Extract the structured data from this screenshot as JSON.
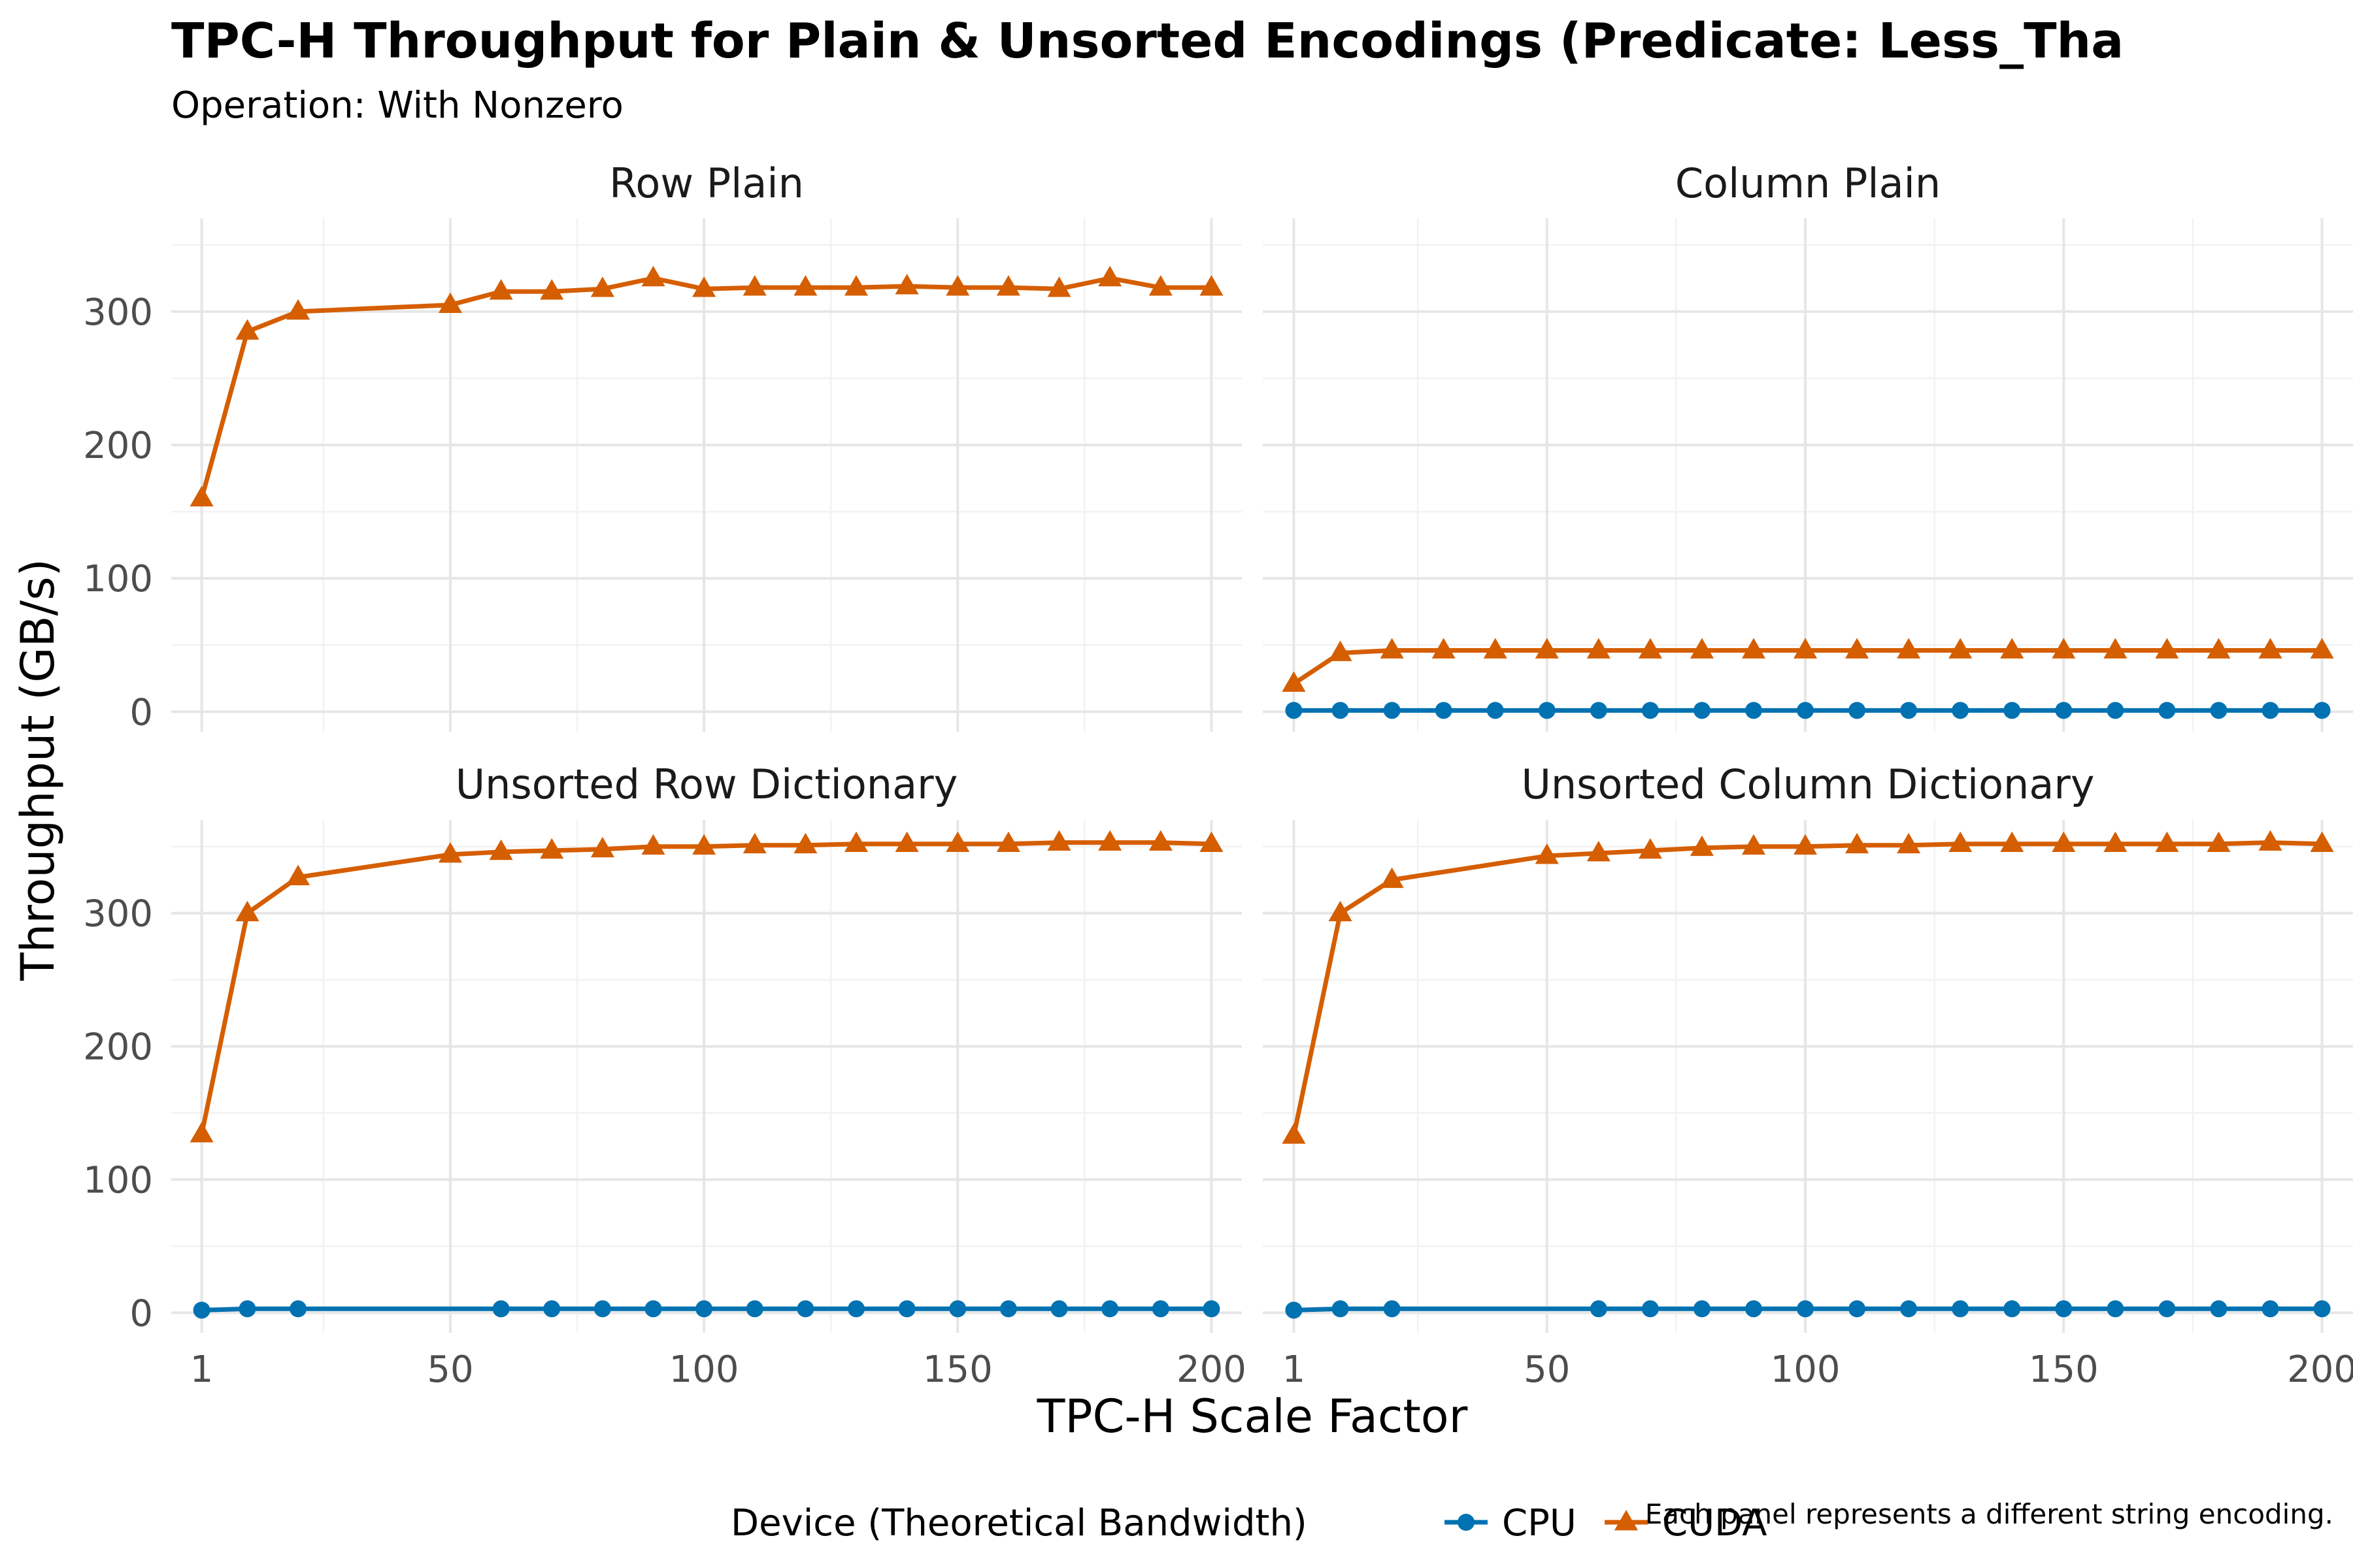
{
  "chart_data": {
    "type": "line",
    "title": "TPC-H Throughput for Plain & Unsorted Encodings (Predicate: Less_Tha",
    "subtitle": "Operation: With Nonzero",
    "xlabel": "TPC-H Scale Factor",
    "ylabel": "Throughput (GB/s)",
    "caption": "Each panel represents a different string encoding.",
    "x_ticks": [
      1,
      50,
      100,
      150,
      200
    ],
    "x_tick_labels": [
      "1",
      "50",
      "100",
      "150",
      "200"
    ],
    "y_ticks": [
      0,
      100,
      200,
      300
    ],
    "y_tick_labels": [
      "0",
      "100",
      "200",
      "300"
    ],
    "xlim": [
      -5,
      206
    ],
    "ylim": [
      -15,
      370
    ],
    "grid": true,
    "legend": {
      "title": "Device (Theoretical Bandwidth)",
      "position": "bottom",
      "entries": [
        {
          "name": "CPU",
          "color": "#0072B2",
          "marker": "circle"
        },
        {
          "name": "CUDA",
          "color": "#D55E00",
          "marker": "triangle"
        }
      ]
    },
    "panels": [
      {
        "title": "Row Plain",
        "series": [
          {
            "name": "CUDA",
            "x": [
              1,
              10,
              20,
              50,
              60,
              70,
              80,
              90,
              100,
              110,
              120,
              130,
              140,
              150,
              160,
              170,
              180,
              190,
              200
            ],
            "values": [
              160,
              285,
              300,
              305,
              315,
              315,
              317,
              325,
              317,
              318,
              318,
              318,
              319,
              318,
              318,
              317,
              325,
              318,
              318
            ]
          }
        ]
      },
      {
        "title": "Column Plain",
        "series": [
          {
            "name": "CPU",
            "x": [
              1,
              10,
              20,
              30,
              40,
              50,
              60,
              70,
              80,
              90,
              100,
              110,
              120,
              130,
              140,
              150,
              160,
              170,
              180,
              190,
              200
            ],
            "values": [
              1,
              1,
              1,
              1,
              1,
              1,
              1,
              1,
              1,
              1,
              1,
              1,
              1,
              1,
              1,
              1,
              1,
              1,
              1,
              1,
              1
            ]
          },
          {
            "name": "CUDA",
            "x": [
              1,
              10,
              20,
              30,
              40,
              50,
              60,
              70,
              80,
              90,
              100,
              110,
              120,
              130,
              140,
              150,
              160,
              170,
              180,
              190,
              200
            ],
            "values": [
              21,
              44,
              46,
              46,
              46,
              46,
              46,
              46,
              46,
              46,
              46,
              46,
              46,
              46,
              46,
              46,
              46,
              46,
              46,
              46,
              46
            ]
          }
        ]
      },
      {
        "title": "Unsorted Row Dictionary",
        "series": [
          {
            "name": "CPU",
            "x": [
              1,
              10,
              20,
              60,
              70,
              80,
              90,
              100,
              110,
              120,
              130,
              140,
              150,
              160,
              170,
              180,
              190,
              200
            ],
            "values": [
              2,
              3,
              3,
              3,
              3,
              3,
              3,
              3,
              3,
              3,
              3,
              3,
              3,
              3,
              3,
              3,
              3,
              3
            ]
          },
          {
            "name": "CUDA",
            "x": [
              1,
              10,
              20,
              50,
              60,
              70,
              80,
              90,
              100,
              110,
              120,
              130,
              140,
              150,
              160,
              170,
              180,
              190,
              200
            ],
            "values": [
              134,
              300,
              327,
              344,
              346,
              347,
              348,
              350,
              350,
              351,
              351,
              352,
              352,
              352,
              352,
              353,
              353,
              353,
              352
            ]
          }
        ]
      },
      {
        "title": "Unsorted Column Dictionary",
        "series": [
          {
            "name": "CPU",
            "x": [
              1,
              10,
              20,
              60,
              70,
              80,
              90,
              100,
              110,
              120,
              130,
              140,
              150,
              160,
              170,
              180,
              190,
              200
            ],
            "values": [
              2,
              3,
              3,
              3,
              3,
              3,
              3,
              3,
              3,
              3,
              3,
              3,
              3,
              3,
              3,
              3,
              3,
              3
            ]
          },
          {
            "name": "CUDA",
            "x": [
              1,
              10,
              20,
              50,
              60,
              70,
              80,
              90,
              100,
              110,
              120,
              130,
              140,
              150,
              160,
              170,
              180,
              190,
              200
            ],
            "values": [
              133,
              300,
              325,
              343,
              345,
              347,
              349,
              350,
              350,
              351,
              351,
              352,
              352,
              352,
              352,
              352,
              352,
              353,
              352
            ]
          }
        ]
      }
    ]
  }
}
